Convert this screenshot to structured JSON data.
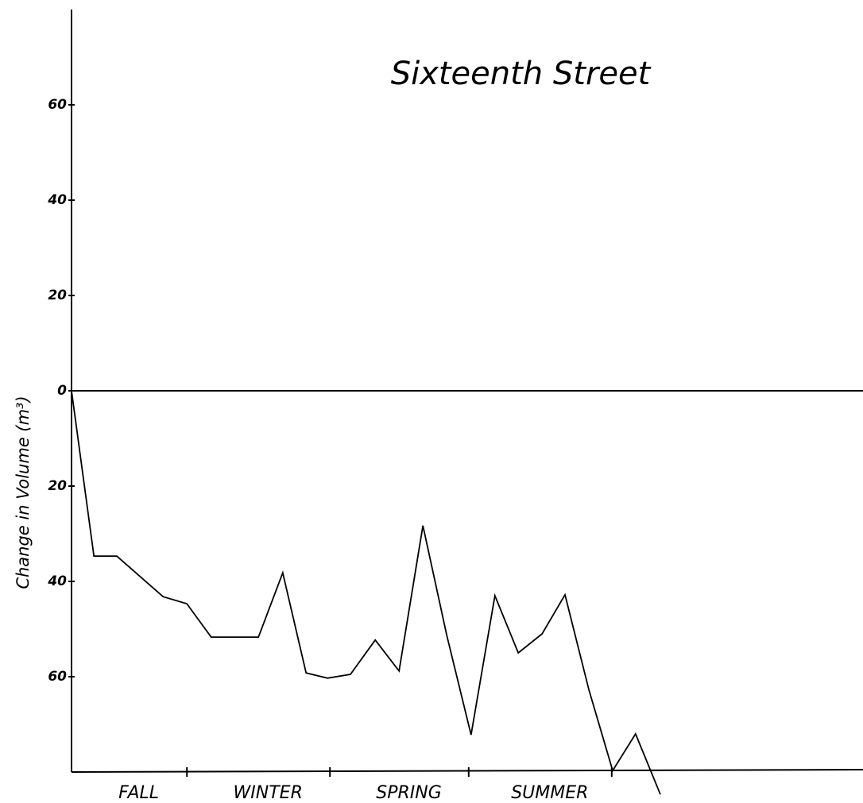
{
  "chart_data": {
    "type": "line",
    "title": "Sixteenth Street",
    "ylabel": "Change in Volume (m³)",
    "x": [
      0,
      0.47,
      0.95,
      1.92,
      2.42,
      2.93,
      3.43,
      3.92,
      4.43,
      4.92,
      5.37,
      5.85,
      6.37,
      6.87,
      7.37,
      7.87,
      8.38,
      8.88,
      9.37,
      9.87,
      10.35,
      10.85,
      11.35,
      11.83,
      12.35
    ],
    "series": [
      {
        "color": "#000000",
        "values": [
          0,
          -34.7,
          -34.7,
          -43.2,
          -44.7,
          -51.7,
          -51.7,
          -51.7,
          -38.2,
          -59.2,
          -60.3,
          -59.5,
          -52.3,
          -58.8,
          -28.3,
          -51.3,
          -72.2,
          -43,
          -55,
          -51,
          -42.8,
          -62.7,
          -79.7,
          -72,
          -84.7
        ]
      }
    ],
    "seasons": [
      "FALL",
      "WINTER",
      "SPRING",
      "SUMMER"
    ],
    "xlim": [
      0,
      16.6
    ],
    "xticks": [
      2.42,
      5.42,
      8.33,
      11.33
    ],
    "ylim": [
      -80,
      80
    ],
    "yticks": [
      {
        "value": -60,
        "label": "60"
      },
      {
        "value": -40,
        "label": "40"
      },
      {
        "value": -20,
        "label": "20"
      },
      0,
      20,
      40,
      60
    ],
    "zero_line": true
  }
}
